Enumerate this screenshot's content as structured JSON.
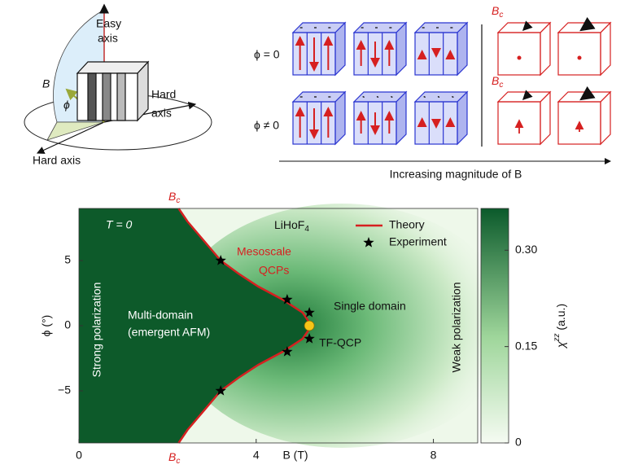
{
  "figure": {
    "easy_axis": [
      "Easy",
      "axis"
    ],
    "hard_axis_right": [
      "Hard",
      "axis"
    ],
    "hard_axis_bottom": "Hard axis",
    "b": "B",
    "phi": "ϕ",
    "rows": [
      "ϕ = 0",
      "ϕ ≠ 0"
    ],
    "bc": {
      "base": "B",
      "sub": "c"
    },
    "arrow_label": "Increasing magnitude of B"
  },
  "chart_data": {
    "type": "heatmap",
    "xlabel": "B (T)",
    "ylabel": "ϕ (°)",
    "xlim": [
      0,
      9
    ],
    "ylim": [
      -9,
      9
    ],
    "xticks": [
      0,
      4,
      8
    ],
    "yticks": [
      5,
      0,
      {
        "value": -5,
        "label": "−5"
      }
    ],
    "legend": "upper right",
    "bc_label": {
      "base": "B",
      "sub": "c"
    },
    "series": [
      {
        "name": "Theory",
        "color": "#d62020",
        "x": [
          2.25,
          2.45,
          2.7,
          2.95,
          3.2,
          3.6,
          4.05,
          4.6,
          5.05,
          5.25,
          5.05,
          4.6,
          4.05,
          3.6,
          3.2,
          2.95,
          2.7,
          2.45,
          2.25
        ],
        "y": [
          9,
          8,
          7,
          6,
          5,
          4,
          3,
          2,
          1,
          0,
          -1,
          -2,
          -3,
          -4,
          -5,
          -6,
          -7,
          -8,
          -9
        ]
      },
      {
        "name": "Experiment",
        "color": "#000000",
        "x": [
          3.2,
          4.7,
          5.2,
          5.2,
          4.7,
          3.2
        ],
        "y": [
          5,
          2,
          1,
          -1,
          -2,
          -5
        ]
      }
    ],
    "critical_point": {
      "label": "TF-QCP",
      "x": 5.2,
      "y": 0,
      "color": "#f5c518"
    },
    "annotations": {
      "t0": "T = 0",
      "material": {
        "base": "LiHoF",
        "sub": "4"
      },
      "mesoscale": [
        "Mesoscale",
        "QCPs"
      ],
      "multi_domain": [
        "Multi-domain",
        "(emergent AFM)"
      ],
      "single_domain": "Single domain",
      "strong": "Strong polarization",
      "weak": "Weak polarization"
    },
    "colorbar": {
      "symbol": "χ",
      "sup": "zz",
      "unit": " (a.u.)",
      "lim": [
        0,
        0.365
      ],
      "ticks": [
        0,
        {
          "value": 0.15,
          "label": "0.15"
        },
        {
          "value": 0.3,
          "label": "0.30"
        }
      ]
    }
  }
}
